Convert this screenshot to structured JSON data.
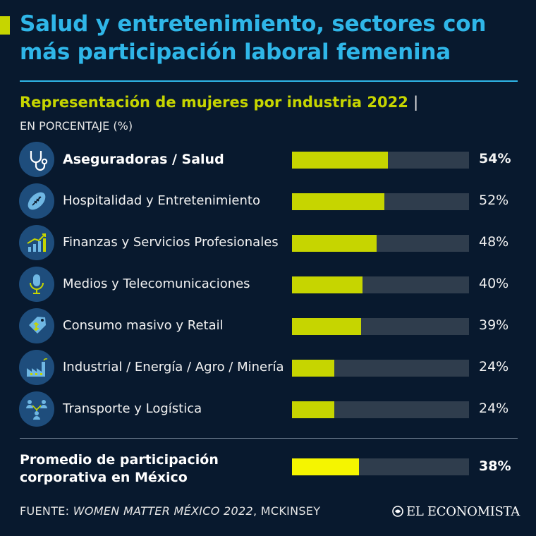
{
  "header": {
    "title": "Salud y entretenimiento, sectores con más participación laboral femenina",
    "subtitle": "Representación de mujeres por industria 2022",
    "subtitle_separator": "|",
    "unit_label": "EN PORCENTAJE (%)"
  },
  "colors": {
    "background": "#08192e",
    "title": "#2fb6e8",
    "bar": "#c6d500",
    "bar_track": "#2f3d4d",
    "average_bar": "#f5f500",
    "icon_circle": "#1e4d7c"
  },
  "chart_data": {
    "type": "bar",
    "orientation": "horizontal",
    "title": "Representación de mujeres por industria 2022",
    "unit": "EN PORCENTAJE (%)",
    "xlim": [
      0,
      100
    ],
    "categories": [
      "Aseguradoras / Salud",
      "Hospitalidad y Entretenimiento",
      "Finanzas y Servicios Profesionales",
      "Medios y Telecomunicaciones",
      "Consumo masivo y Retail",
      "Industrial / Energía / Agro / Minería",
      "Transporte y Logística"
    ],
    "values": [
      54,
      52,
      48,
      40,
      39,
      24,
      24
    ],
    "value_labels": [
      "54%",
      "52%",
      "48%",
      "40%",
      "39%",
      "24%",
      "24%"
    ],
    "icons": [
      "stethoscope-icon",
      "football-icon",
      "growth-chart-icon",
      "microphone-icon",
      "price-tag-icon",
      "factory-icon",
      "team-network-icon"
    ],
    "highlighted": [
      true,
      false,
      false,
      false,
      false,
      false,
      false
    ],
    "average": {
      "label": "Promedio de participación corporativa en México",
      "value": 38,
      "value_label": "38%"
    }
  },
  "footer": {
    "source_prefix": "FUENTE:",
    "source_title": "WOMEN MATTER MÉXICO 2022",
    "source_suffix": ", MCKINSEY",
    "brand": "EL ECONOMISTA"
  }
}
